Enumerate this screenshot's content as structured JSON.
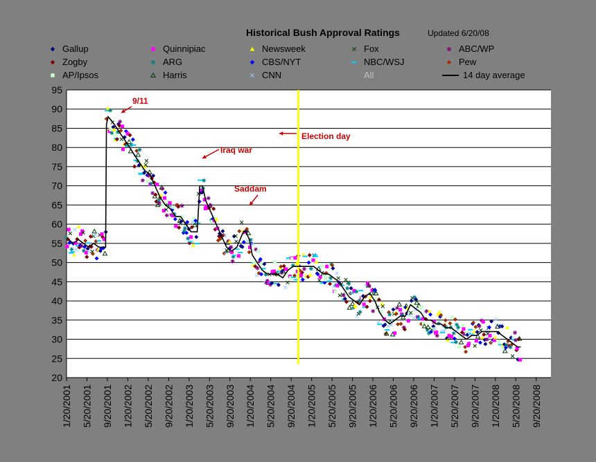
{
  "chart_data": {
    "type": "scatter",
    "title": "Historical Bush Approval Ratings",
    "subtitle": "Updated 6/20/08",
    "xlabel": "",
    "ylabel": "",
    "ylim": [
      20,
      95
    ],
    "y_ticks": [
      20,
      25,
      30,
      35,
      40,
      45,
      50,
      55,
      60,
      65,
      70,
      75,
      80,
      85,
      90,
      95
    ],
    "x_tick_labels": [
      "1/20/2001",
      "5/20/2001",
      "9/20/2001",
      "1/20/2002",
      "5/20/2002",
      "9/20/2002",
      "1/20/2003",
      "5/20/2003",
      "9/20/2003",
      "1/20/2004",
      "5/20/2004",
      "9/20/2004",
      "1/20/2005",
      "5/20/2005",
      "9/20/2005",
      "1/20/2006",
      "5/20/2006",
      "9/20/2006",
      "1/20/2007",
      "5/20/2007",
      "9/20/2007",
      "1/20/2008",
      "5/20/2008",
      "9/20/2008"
    ],
    "grid": true,
    "legend_placement": "top",
    "legend": [
      {
        "name": "Gallup",
        "marker": "diamond",
        "color": "#000080"
      },
      {
        "name": "Quinnipiac",
        "marker": "square",
        "color": "#ff00ff"
      },
      {
        "name": "Newsweek",
        "marker": "triangle",
        "color": "#ffff00"
      },
      {
        "name": "Fox",
        "marker": "x",
        "color": "#003300"
      },
      {
        "name": "ABC/WP",
        "marker": "star",
        "color": "#800080"
      },
      {
        "name": "Zogby",
        "marker": "diamond",
        "color": "#800000"
      },
      {
        "name": "ARG",
        "marker": "star",
        "color": "#008080"
      },
      {
        "name": "CBS/NYT",
        "marker": "diamond",
        "color": "#0000ff"
      },
      {
        "name": "NBC/WSJ",
        "marker": "dash",
        "color": "#00ccff"
      },
      {
        "name": "Pew",
        "marker": "diamond",
        "color": "#993300"
      },
      {
        "name": "AP/Ipsos",
        "marker": "square",
        "color": "#ccffcc"
      },
      {
        "name": "Harris",
        "marker": "triangle-open",
        "color": "#003300"
      },
      {
        "name": "CNN",
        "marker": "x",
        "color": "#99ccff"
      },
      {
        "name": "All",
        "marker": "none",
        "color": "#c0c0c0"
      },
      {
        "name": "14 day average",
        "marker": "line",
        "color": "#000000"
      }
    ],
    "average_line": {
      "name": "14 day average",
      "x": [
        "2001-02-01",
        "2001-03-01",
        "2001-04-01",
        "2001-05-01",
        "2001-06-01",
        "2001-07-01",
        "2001-08-01",
        "2001-09-10",
        "2001-09-15",
        "2001-09-25",
        "2001-10-15",
        "2001-11-01",
        "2001-12-01",
        "2002-01-01",
        "2002-02-01",
        "2002-03-01",
        "2002-04-01",
        "2002-05-01",
        "2002-06-01",
        "2002-07-01",
        "2002-08-01",
        "2002-09-01",
        "2002-10-01",
        "2002-11-01",
        "2002-12-01",
        "2003-01-01",
        "2003-02-01",
        "2003-03-10",
        "2003-03-25",
        "2003-04-10",
        "2003-05-01",
        "2003-06-01",
        "2003-07-01",
        "2003-08-01",
        "2003-09-01",
        "2003-10-01",
        "2003-11-01",
        "2003-12-10",
        "2003-12-25",
        "2004-01-15",
        "2004-02-01",
        "2004-03-01",
        "2004-04-01",
        "2004-05-01",
        "2004-06-01",
        "2004-07-01",
        "2004-08-01",
        "2004-09-01",
        "2004-10-01",
        "2004-11-01",
        "2004-12-01",
        "2005-01-01",
        "2005-02-01",
        "2005-03-01",
        "2005-04-01",
        "2005-05-01",
        "2005-06-01",
        "2005-07-01",
        "2005-08-01",
        "2005-09-01",
        "2005-10-01",
        "2005-11-01",
        "2005-12-01",
        "2006-01-01",
        "2006-02-01",
        "2006-03-01",
        "2006-04-01",
        "2006-05-01",
        "2006-06-01",
        "2006-07-01",
        "2006-08-01",
        "2006-09-01",
        "2006-10-01",
        "2006-11-01",
        "2006-12-01",
        "2007-01-01",
        "2007-02-01",
        "2007-03-01",
        "2007-04-01",
        "2007-05-01",
        "2007-06-01",
        "2007-07-01",
        "2007-08-01",
        "2007-09-01",
        "2007-10-01",
        "2007-11-01",
        "2007-12-01",
        "2008-01-01",
        "2008-02-01",
        "2008-03-01",
        "2008-04-01",
        "2008-05-01",
        "2008-06-01",
        "2008-06-20"
      ],
      "y": [
        56,
        55,
        56,
        55,
        54,
        55,
        54,
        54,
        86,
        88,
        87,
        86,
        84,
        82,
        80,
        78,
        76,
        74,
        73,
        70,
        67,
        65,
        64,
        62,
        62,
        60,
        58,
        58,
        70,
        70,
        66,
        63,
        60,
        57,
        54,
        53,
        54,
        58,
        58,
        56,
        52,
        50,
        48,
        47,
        47,
        47,
        46,
        48,
        49,
        49,
        49,
        49,
        49,
        48,
        47,
        47,
        46,
        45,
        43,
        41,
        40,
        39,
        41,
        42,
        40,
        37,
        35,
        34,
        35,
        36,
        36,
        39,
        38,
        37,
        35,
        35,
        34,
        34,
        33,
        33,
        32,
        31,
        30,
        31,
        31,
        32,
        32,
        32,
        32,
        31,
        30,
        29,
        28,
        28
      ]
    },
    "marker_cloud_note_free": true,
    "annotations": [
      {
        "text": "9/11",
        "x": "2001-09-20",
        "y": 91
      },
      {
        "text": "Iraq war",
        "x": "2003-03-20",
        "y": 79
      },
      {
        "text": "Saddam",
        "x": "2003-12-15",
        "y": 68
      },
      {
        "text": "Election day",
        "x": "2004-11-02",
        "y": 84
      }
    ],
    "election_day": "2004-11-02",
    "colors": {
      "background": "#808080",
      "plot_area": "#ffffff",
      "gridline": "#000000",
      "average": "#000000",
      "election_line": "#ffff00",
      "annotation": "#cc0000"
    }
  }
}
